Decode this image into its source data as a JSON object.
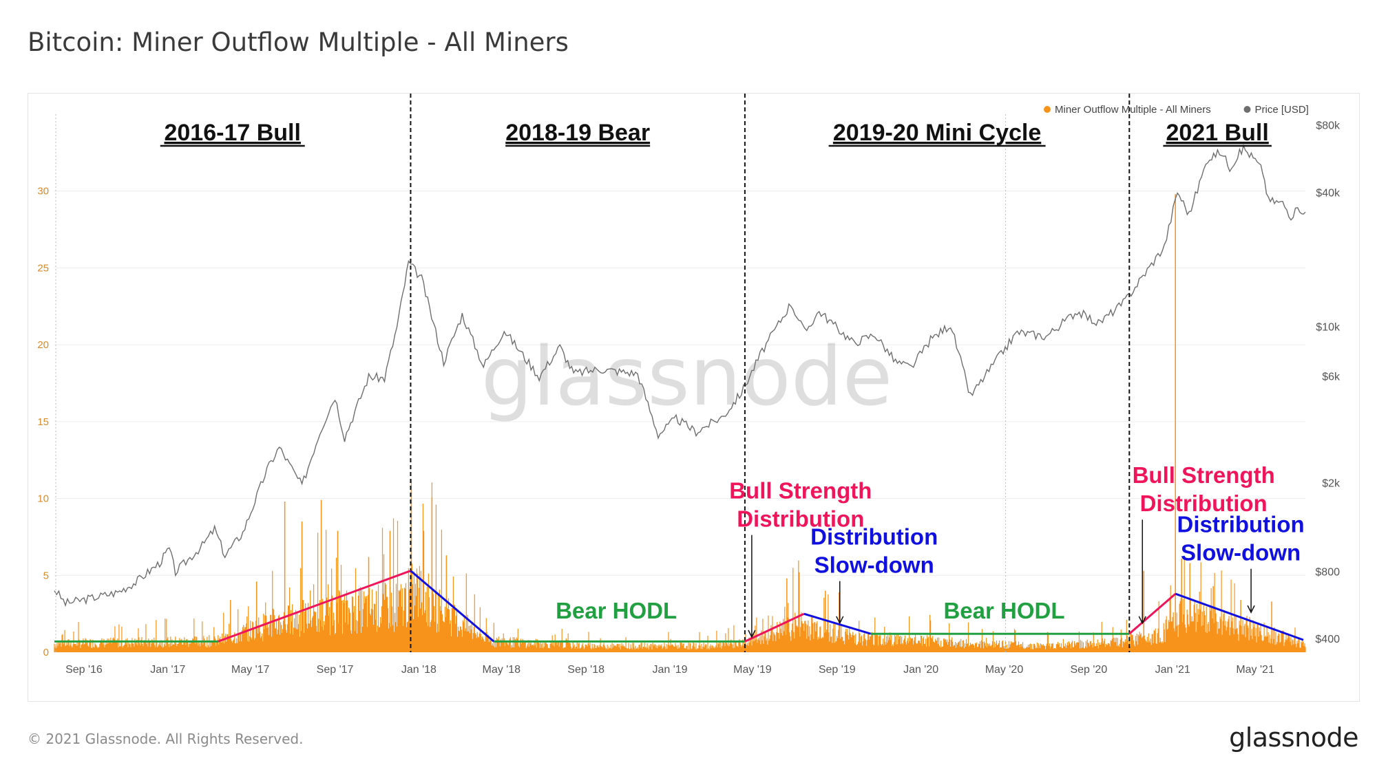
{
  "title": "Bitcoin: Miner Outflow Multiple - All Miners",
  "footer": {
    "copyright": "© 2021 Glassnode. All Rights Reserved.",
    "logo": "glassnode"
  },
  "watermark": "glassnode",
  "colors": {
    "outflow": "#f7931a",
    "price": "#6e6e6e",
    "bull": "#f0145a",
    "bear": "#1010e0",
    "hodl": "#20a040",
    "grid": "#ececec",
    "left_axis": "#d98a2b"
  },
  "chart_data": {
    "type": "bar+line",
    "x_range": [
      "2016-07-20",
      "2021-07-13"
    ],
    "x_ticks": [
      {
        "label": "Sep '16",
        "date": "2016-09-01"
      },
      {
        "label": "Jan '17",
        "date": "2017-01-01"
      },
      {
        "label": "May '17",
        "date": "2017-05-01"
      },
      {
        "label": "Sep '17",
        "date": "2017-09-01"
      },
      {
        "label": "Jan '18",
        "date": "2018-01-01"
      },
      {
        "label": "May '18",
        "date": "2018-05-01"
      },
      {
        "label": "Sep '18",
        "date": "2018-09-01"
      },
      {
        "label": "Jan '19",
        "date": "2019-01-01"
      },
      {
        "label": "May '19",
        "date": "2019-05-01"
      },
      {
        "label": "Sep '19",
        "date": "2019-09-01"
      },
      {
        "label": "Jan '20",
        "date": "2020-01-01"
      },
      {
        "label": "May '20",
        "date": "2020-05-01"
      },
      {
        "label": "Sep '20",
        "date": "2020-09-01"
      },
      {
        "label": "Jan '21",
        "date": "2021-01-01"
      },
      {
        "label": "May '21",
        "date": "2021-05-01"
      }
    ],
    "y_left": {
      "min": 0,
      "max": 35,
      "ticks": [
        "0",
        "5",
        "10",
        "15",
        "20",
        "25",
        "30"
      ]
    },
    "y_right": {
      "scale": "log",
      "min": 350,
      "max": 90000,
      "ticks": [
        {
          "label": "$400",
          "value": 400
        },
        {
          "label": "$800",
          "value": 800
        },
        {
          "label": "$2k",
          "value": 2000
        },
        {
          "label": "$6k",
          "value": 6000
        },
        {
          "label": "$10k",
          "value": 10000
        },
        {
          "label": "$40k",
          "value": 40000
        },
        {
          "label": "$80k",
          "value": 80000
        }
      ]
    },
    "legend": {
      "position": "top-right",
      "items": [
        {
          "name": "Miner Outflow Multiple - All Miners",
          "color": "#f7931a"
        },
        {
          "name": "Price [USD]",
          "color": "#6e6e6e"
        }
      ]
    },
    "series": [
      {
        "name": "Price [USD]",
        "axis": "right",
        "points": [
          [
            "2016-07-20",
            670
          ],
          [
            "2016-08-05",
            580
          ],
          [
            "2016-09-10",
            610
          ],
          [
            "2016-10-20",
            650
          ],
          [
            "2016-11-15",
            720
          ],
          [
            "2016-12-20",
            880
          ],
          [
            "2017-01-03",
            1020
          ],
          [
            "2017-01-12",
            800
          ],
          [
            "2017-02-20",
            1050
          ],
          [
            "2017-03-10",
            1250
          ],
          [
            "2017-03-25",
            950
          ],
          [
            "2017-04-20",
            1200
          ],
          [
            "2017-05-25",
            2300
          ],
          [
            "2017-06-12",
            2900
          ],
          [
            "2017-07-15",
            1950
          ],
          [
            "2017-08-10",
            3400
          ],
          [
            "2017-09-01",
            4900
          ],
          [
            "2017-09-15",
            3200
          ],
          [
            "2017-10-20",
            6000
          ],
          [
            "2017-11-12",
            5900
          ],
          [
            "2017-11-30",
            10000
          ],
          [
            "2017-12-17",
            19500
          ],
          [
            "2018-01-05",
            16500
          ],
          [
            "2018-02-06",
            7000
          ],
          [
            "2018-03-05",
            11400
          ],
          [
            "2018-04-05",
            6700
          ],
          [
            "2018-05-05",
            9700
          ],
          [
            "2018-06-25",
            6000
          ],
          [
            "2018-07-25",
            8200
          ],
          [
            "2018-08-14",
            6200
          ],
          [
            "2018-09-20",
            6500
          ],
          [
            "2018-11-15",
            6200
          ],
          [
            "2018-12-15",
            3300
          ],
          [
            "2019-01-10",
            3900
          ],
          [
            "2019-02-08",
            3400
          ],
          [
            "2019-03-20",
            4000
          ],
          [
            "2019-04-15",
            5100
          ],
          [
            "2019-05-15",
            7800
          ],
          [
            "2019-06-26",
            12800
          ],
          [
            "2019-07-16",
            9500
          ],
          [
            "2019-08-06",
            11800
          ],
          [
            "2019-09-25",
            8500
          ],
          [
            "2019-10-26",
            9300
          ],
          [
            "2019-11-25",
            7000
          ],
          [
            "2019-12-18",
            6600
          ],
          [
            "2020-01-15",
            8800
          ],
          [
            "2020-02-13",
            10300
          ],
          [
            "2020-03-13",
            4900
          ],
          [
            "2020-04-15",
            6800
          ],
          [
            "2020-05-20",
            9500
          ],
          [
            "2020-07-01",
            9100
          ],
          [
            "2020-08-15",
            11800
          ],
          [
            "2020-09-15",
            10400
          ],
          [
            "2020-10-21",
            12800
          ],
          [
            "2020-11-25",
            18000
          ],
          [
            "2020-12-20",
            23000
          ],
          [
            "2021-01-08",
            40500
          ],
          [
            "2021-01-25",
            32000
          ],
          [
            "2021-02-21",
            57000
          ],
          [
            "2021-03-13",
            61000
          ],
          [
            "2021-03-25",
            52000
          ],
          [
            "2021-04-14",
            63500
          ],
          [
            "2021-05-01",
            56000
          ],
          [
            "2021-05-12",
            50000
          ],
          [
            "2021-05-20",
            37000
          ],
          [
            "2021-06-10",
            36000
          ],
          [
            "2021-06-22",
            31500
          ],
          [
            "2021-07-05",
            34000
          ],
          [
            "2021-07-13",
            32800
          ]
        ]
      },
      {
        "name": "Miner Outflow Multiple - All Miners",
        "axis": "left",
        "style": "bars",
        "envelope": [
          [
            "2016-07-20",
            0.7
          ],
          [
            "2017-03-15",
            0.9
          ],
          [
            "2017-06-01",
            2.3
          ],
          [
            "2017-09-01",
            3.2
          ],
          [
            "2017-12-05",
            3.8
          ],
          [
            "2017-12-28",
            5.0
          ],
          [
            "2018-02-15",
            2.8
          ],
          [
            "2018-04-15",
            0.9
          ],
          [
            "2018-09-01",
            0.5
          ],
          [
            "2019-03-01",
            0.5
          ],
          [
            "2019-04-25",
            0.8
          ],
          [
            "2019-07-10",
            2.3
          ],
          [
            "2019-10-01",
            1.2
          ],
          [
            "2020-03-15",
            0.7
          ],
          [
            "2020-07-01",
            0.5
          ],
          [
            "2020-10-15",
            0.8
          ],
          [
            "2020-12-15",
            1.5
          ],
          [
            "2021-01-15",
            3.0
          ],
          [
            "2021-03-15",
            2.2
          ],
          [
            "2021-05-01",
            1.8
          ],
          [
            "2021-07-13",
            0.6
          ]
        ],
        "spikes": [
          [
            "2017-04-02",
            3.4
          ],
          [
            "2017-05-10",
            4.6
          ],
          [
            "2017-06-20",
            9.8
          ],
          [
            "2017-07-15",
            8.5
          ],
          [
            "2017-08-12",
            9.9
          ],
          [
            "2017-09-05",
            7.9
          ],
          [
            "2017-10-20",
            6.2
          ],
          [
            "2017-11-20",
            7.9
          ],
          [
            "2017-12-21",
            10.6
          ],
          [
            "2018-01-08",
            7.9
          ],
          [
            "2018-01-20",
            10.1
          ],
          [
            "2018-02-10",
            6.3
          ],
          [
            "2019-06-20",
            4.8
          ],
          [
            "2019-07-08",
            5.2
          ],
          [
            "2019-08-15",
            4.0
          ],
          [
            "2020-11-20",
            5.3
          ],
          [
            "2021-01-05",
            29.8
          ],
          [
            "2021-01-14",
            6.1
          ],
          [
            "2021-01-26",
            5.8
          ],
          [
            "2021-03-01",
            4.3
          ],
          [
            "2021-04-10",
            3.4
          ],
          [
            "2021-05-25",
            3.3
          ]
        ]
      }
    ],
    "phases": [
      {
        "label": "2016-17 Bull",
        "start": "2016-07-20",
        "end": "2017-12-20"
      },
      {
        "label": "2018-19 Bear",
        "start": "2017-12-20",
        "end": "2019-04-20"
      },
      {
        "label": "2019-20 Mini Cycle",
        "start": "2019-04-20",
        "end": "2020-10-30"
      },
      {
        "label": "2021 Bull",
        "start": "2020-10-30",
        "end": "2021-07-13"
      }
    ],
    "trend_lines": [
      {
        "type": "hodl",
        "points": [
          [
            "2016-07-20",
            0.7
          ],
          [
            "2017-03-15",
            0.7
          ]
        ]
      },
      {
        "type": "bull",
        "points": [
          [
            "2017-03-15",
            0.7
          ],
          [
            "2017-12-20",
            5.3
          ]
        ]
      },
      {
        "type": "bear",
        "points": [
          [
            "2017-12-20",
            5.3
          ],
          [
            "2018-04-20",
            0.7
          ]
        ]
      },
      {
        "type": "hodl",
        "points": [
          [
            "2018-04-20",
            0.7
          ],
          [
            "2019-04-20",
            0.7
          ]
        ]
      },
      {
        "type": "bull",
        "points": [
          [
            "2019-04-20",
            0.7
          ],
          [
            "2019-07-15",
            2.5
          ]
        ]
      },
      {
        "type": "bear",
        "points": [
          [
            "2019-07-15",
            2.5
          ],
          [
            "2019-10-20",
            1.2
          ]
        ]
      },
      {
        "type": "hodl",
        "points": [
          [
            "2019-10-20",
            1.2
          ],
          [
            "2020-10-30",
            1.2
          ]
        ]
      },
      {
        "type": "bull",
        "points": [
          [
            "2020-10-30",
            1.2
          ],
          [
            "2021-01-05",
            3.8
          ]
        ]
      },
      {
        "type": "bear",
        "points": [
          [
            "2021-01-05",
            3.8
          ],
          [
            "2021-07-10",
            0.8
          ]
        ]
      }
    ],
    "annotations": [
      {
        "type": "hodl",
        "lines": [
          "Bear HODL"
        ],
        "color": "#20a040",
        "date": "2018-10-15",
        "y": 2.2
      },
      {
        "type": "hodl",
        "lines": [
          "Bear HODL"
        ],
        "color": "#20a040",
        "date": "2020-05-01",
        "y": 2.2
      },
      {
        "type": "bull",
        "lines": [
          "Bull Strength",
          "Distribution"
        ],
        "color": "#f0145a",
        "date": "2019-07-10",
        "y": 10.0,
        "arrow": [
          "2019-04-30",
          0.9
        ]
      },
      {
        "type": "bear",
        "lines": [
          "Distribution",
          "Slow-down"
        ],
        "color": "#1010e0",
        "date": "2019-10-25",
        "y": 7.0,
        "arrow": [
          "2019-09-05",
          1.8
        ]
      },
      {
        "type": "bull",
        "lines": [
          "Bull Strength",
          "Distribution"
        ],
        "color": "#f0145a",
        "date": "2021-02-15",
        "y": 11.0,
        "arrow": [
          "2020-11-18",
          1.8
        ]
      },
      {
        "type": "bear",
        "lines": [
          "Distribution",
          "Slow-down"
        ],
        "color": "#1010e0",
        "date": "2021-04-10",
        "y": 7.8,
        "arrow": [
          "2021-04-25",
          2.5
        ]
      }
    ]
  }
}
